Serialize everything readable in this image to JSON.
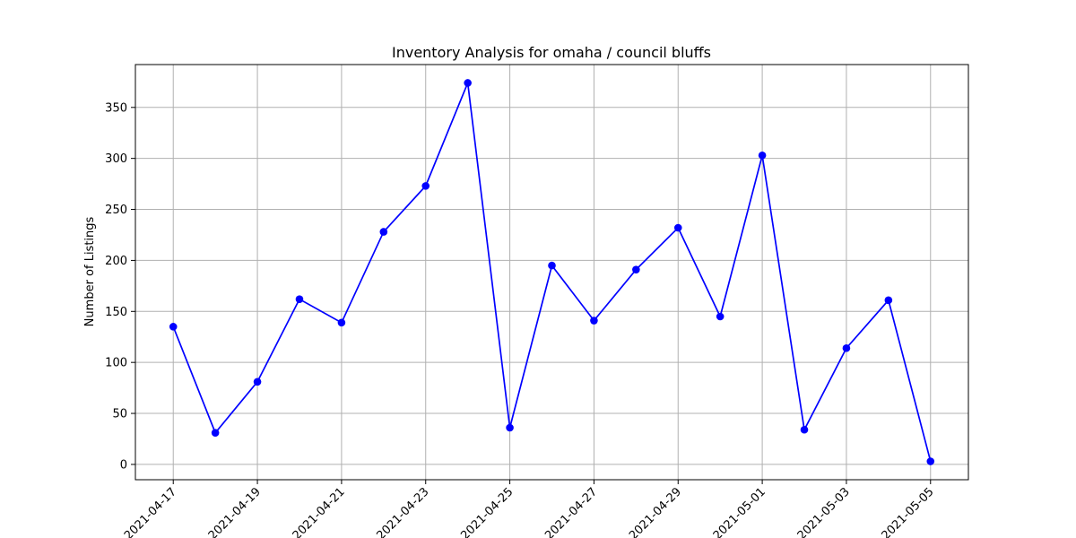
{
  "chart_data": {
    "type": "line",
    "title": "Inventory Analysis for omaha / council bluffs",
    "xlabel": "",
    "ylabel": "Number of Listings",
    "x": [
      "2021-04-17",
      "2021-04-18",
      "2021-04-19",
      "2021-04-20",
      "2021-04-21",
      "2021-04-22",
      "2021-04-23",
      "2021-04-24",
      "2021-04-25",
      "2021-04-26",
      "2021-04-27",
      "2021-04-28",
      "2021-04-29",
      "2021-04-30",
      "2021-05-01",
      "2021-05-02",
      "2021-05-03",
      "2021-05-04",
      "2021-05-05"
    ],
    "series": [
      {
        "values": [
          135,
          31,
          81,
          162,
          139,
          228,
          273,
          374,
          36,
          195,
          141,
          191,
          232,
          145,
          303,
          34,
          114,
          161,
          3
        ],
        "color": "#0000ff",
        "marker": "circle"
      }
    ],
    "xticks": [
      "2021-04-17",
      "2021-04-19",
      "2021-04-21",
      "2021-04-23",
      "2021-04-25",
      "2021-04-27",
      "2021-04-29",
      "2021-05-01",
      "2021-05-03",
      "2021-05-05"
    ],
    "yticks": [
      0,
      50,
      100,
      150,
      200,
      250,
      300,
      350
    ],
    "ylim": [
      -15,
      392
    ],
    "grid": true,
    "legend": false
  }
}
